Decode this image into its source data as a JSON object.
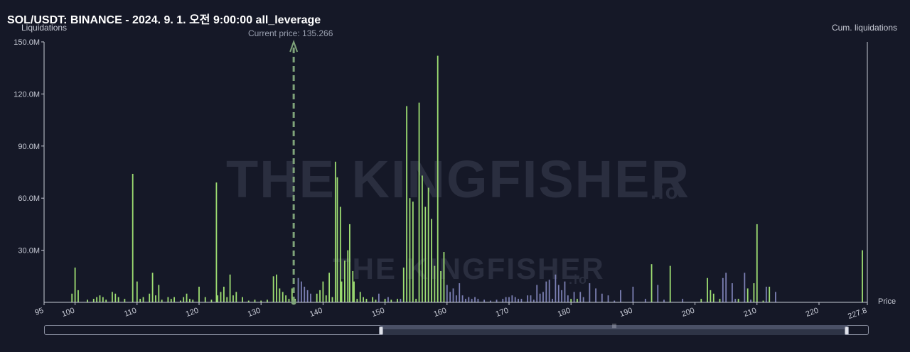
{
  "chart_data": {
    "type": "bar",
    "title": "SOL/USDT: BINANCE - 2024. 9. 1. 오전 9:00:00 all_leverage",
    "ylabel": "Liquidations",
    "y2label": "Cum. liquidations",
    "xlabel": "Price",
    "xlim": [
      95,
      227.8
    ],
    "ylim": [
      0,
      150
    ],
    "y_ticks": [
      "150.0M",
      "120.0M",
      "90.0M",
      "60.0M",
      "30.0M"
    ],
    "y_tick_values": [
      150,
      120,
      90,
      60,
      30
    ],
    "x_ticks": [
      "95",
      "100",
      "110",
      "120",
      "130",
      "140",
      "150",
      "160",
      "170",
      "180",
      "190",
      "200",
      "210",
      "220",
      "227.8"
    ],
    "x_tick_values": [
      95,
      100,
      110,
      120,
      130,
      140,
      150,
      160,
      170,
      180,
      190,
      200,
      210,
      220,
      227.8
    ],
    "current_price": 135.266,
    "current_price_label": "Current price: 135.266",
    "colors": {
      "short": "#9ede72",
      "long": "#7b7fb3",
      "current": "#7fa37a",
      "axis": "#c8cbd6"
    },
    "series": [
      {
        "name": "",
        "color": "#9ede72",
        "points": [
          [
            99.5,
            5
          ],
          [
            100,
            20
          ],
          [
            100.5,
            7
          ],
          [
            102,
            1.5
          ],
          [
            103,
            2
          ],
          [
            103.5,
            3
          ],
          [
            104,
            4
          ],
          [
            104.5,
            3
          ],
          [
            105,
            1.5
          ],
          [
            106,
            6
          ],
          [
            106.5,
            5
          ],
          [
            107,
            3
          ],
          [
            108,
            2
          ],
          [
            109.3,
            74
          ],
          [
            110,
            12
          ],
          [
            110.5,
            2
          ],
          [
            111,
            3
          ],
          [
            112,
            5
          ],
          [
            112.5,
            17
          ],
          [
            113,
            4
          ],
          [
            113.5,
            10
          ],
          [
            114,
            1.5
          ],
          [
            115,
            3
          ],
          [
            115.5,
            2
          ],
          [
            116,
            3
          ],
          [
            117,
            1
          ],
          [
            117.5,
            3
          ],
          [
            118,
            5
          ],
          [
            118.5,
            2
          ],
          [
            119,
            1.5
          ],
          [
            120,
            9
          ],
          [
            121,
            3
          ],
          [
            122,
            1.5
          ],
          [
            122.8,
            69
          ],
          [
            123,
            4
          ],
          [
            123.5,
            6
          ],
          [
            124,
            9
          ],
          [
            124.5,
            3
          ],
          [
            125,
            16
          ],
          [
            125.5,
            4
          ],
          [
            126,
            6
          ],
          [
            127,
            3
          ],
          [
            128,
            1
          ],
          [
            129,
            1.5
          ],
          [
            130,
            1
          ],
          [
            131,
            1.5
          ],
          [
            132,
            15
          ],
          [
            132.5,
            16
          ],
          [
            133,
            8
          ],
          [
            133.5,
            6
          ],
          [
            134,
            4
          ],
          [
            134.5,
            2
          ],
          [
            135,
            8
          ],
          [
            135.5,
            2
          ],
          [
            139,
            5
          ],
          [
            139.5,
            7
          ],
          [
            140,
            12
          ],
          [
            140.5,
            4
          ],
          [
            141,
            17
          ],
          [
            141.5,
            3
          ],
          [
            142,
            81
          ],
          [
            142.3,
            72
          ],
          [
            142.8,
            55
          ],
          [
            143,
            12
          ],
          [
            143.5,
            24
          ],
          [
            144,
            30
          ],
          [
            144.3,
            45
          ],
          [
            144.8,
            18
          ],
          [
            145,
            12
          ],
          [
            145.5,
            2
          ],
          [
            146,
            6
          ],
          [
            146.5,
            3
          ],
          [
            147,
            2
          ],
          [
            148,
            3
          ],
          [
            148.5,
            1.5
          ],
          [
            150,
            2
          ],
          [
            151,
            1.5
          ],
          [
            152,
            2
          ],
          [
            153,
            20
          ],
          [
            153.5,
            113
          ],
          [
            154,
            60
          ],
          [
            154.5,
            58
          ],
          [
            155,
            2
          ],
          [
            155.5,
            115
          ],
          [
            156,
            73
          ],
          [
            156.5,
            55
          ],
          [
            157,
            66
          ],
          [
            157.5,
            48
          ],
          [
            158,
            21
          ],
          [
            158.5,
            142
          ],
          [
            159,
            18
          ],
          [
            159.5,
            29
          ],
          [
            180,
            2
          ],
          [
            181,
            2
          ],
          [
            193,
            22
          ],
          [
            196,
            21
          ],
          [
            201,
            2
          ],
          [
            202,
            14
          ],
          [
            202.5,
            7
          ],
          [
            203,
            5
          ],
          [
            204,
            2
          ],
          [
            207,
            2
          ],
          [
            208.5,
            8
          ],
          [
            209.5,
            11
          ],
          [
            210,
            45
          ],
          [
            211,
            1
          ],
          [
            212,
            9
          ],
          [
            227,
            30
          ]
        ]
      },
      {
        "name": "",
        "color": "#7b7fb3",
        "points": [
          [
            136,
            14
          ],
          [
            136.5,
            12
          ],
          [
            137,
            9
          ],
          [
            137.5,
            7
          ],
          [
            138,
            5
          ],
          [
            149,
            5
          ],
          [
            150.5,
            3
          ],
          [
            152.5,
            2
          ],
          [
            160,
            10
          ],
          [
            160.5,
            6
          ],
          [
            161,
            8
          ],
          [
            161.5,
            4
          ],
          [
            162,
            11
          ],
          [
            162.5,
            4
          ],
          [
            163,
            2
          ],
          [
            163.5,
            3
          ],
          [
            164,
            2
          ],
          [
            164.5,
            3
          ],
          [
            165,
            2
          ],
          [
            166,
            1.5
          ],
          [
            167,
            1
          ],
          [
            168,
            1.5
          ],
          [
            169,
            2
          ],
          [
            169.5,
            3
          ],
          [
            170,
            3
          ],
          [
            170.5,
            4
          ],
          [
            171,
            3
          ],
          [
            171.5,
            2
          ],
          [
            172,
            2
          ],
          [
            173,
            4
          ],
          [
            173.5,
            4
          ],
          [
            174,
            1.5
          ],
          [
            174.5,
            10
          ],
          [
            175,
            5
          ],
          [
            175.5,
            6
          ],
          [
            176,
            12
          ],
          [
            176.5,
            13
          ],
          [
            177,
            2
          ],
          [
            177.5,
            16
          ],
          [
            178,
            10
          ],
          [
            178.5,
            7
          ],
          [
            179,
            12
          ],
          [
            179.5,
            4
          ],
          [
            180.5,
            6
          ],
          [
            181.5,
            6
          ],
          [
            182,
            3
          ],
          [
            183,
            11
          ],
          [
            184,
            8
          ],
          [
            185,
            5
          ],
          [
            186,
            4
          ],
          [
            187,
            1
          ],
          [
            188,
            7
          ],
          [
            190,
            9
          ],
          [
            192,
            2
          ],
          [
            194,
            10
          ],
          [
            195,
            1.5
          ],
          [
            198,
            2
          ],
          [
            204.5,
            14
          ],
          [
            205,
            17
          ],
          [
            206,
            11
          ],
          [
            206.5,
            2
          ],
          [
            208,
            17
          ],
          [
            209,
            1.5
          ],
          [
            211.5,
            9
          ],
          [
            213,
            6
          ]
        ]
      }
    ]
  },
  "watermark": {
    "text": "THE KINGFISHER",
    "suffix": ".io"
  },
  "slider": {
    "grip": "|||"
  }
}
